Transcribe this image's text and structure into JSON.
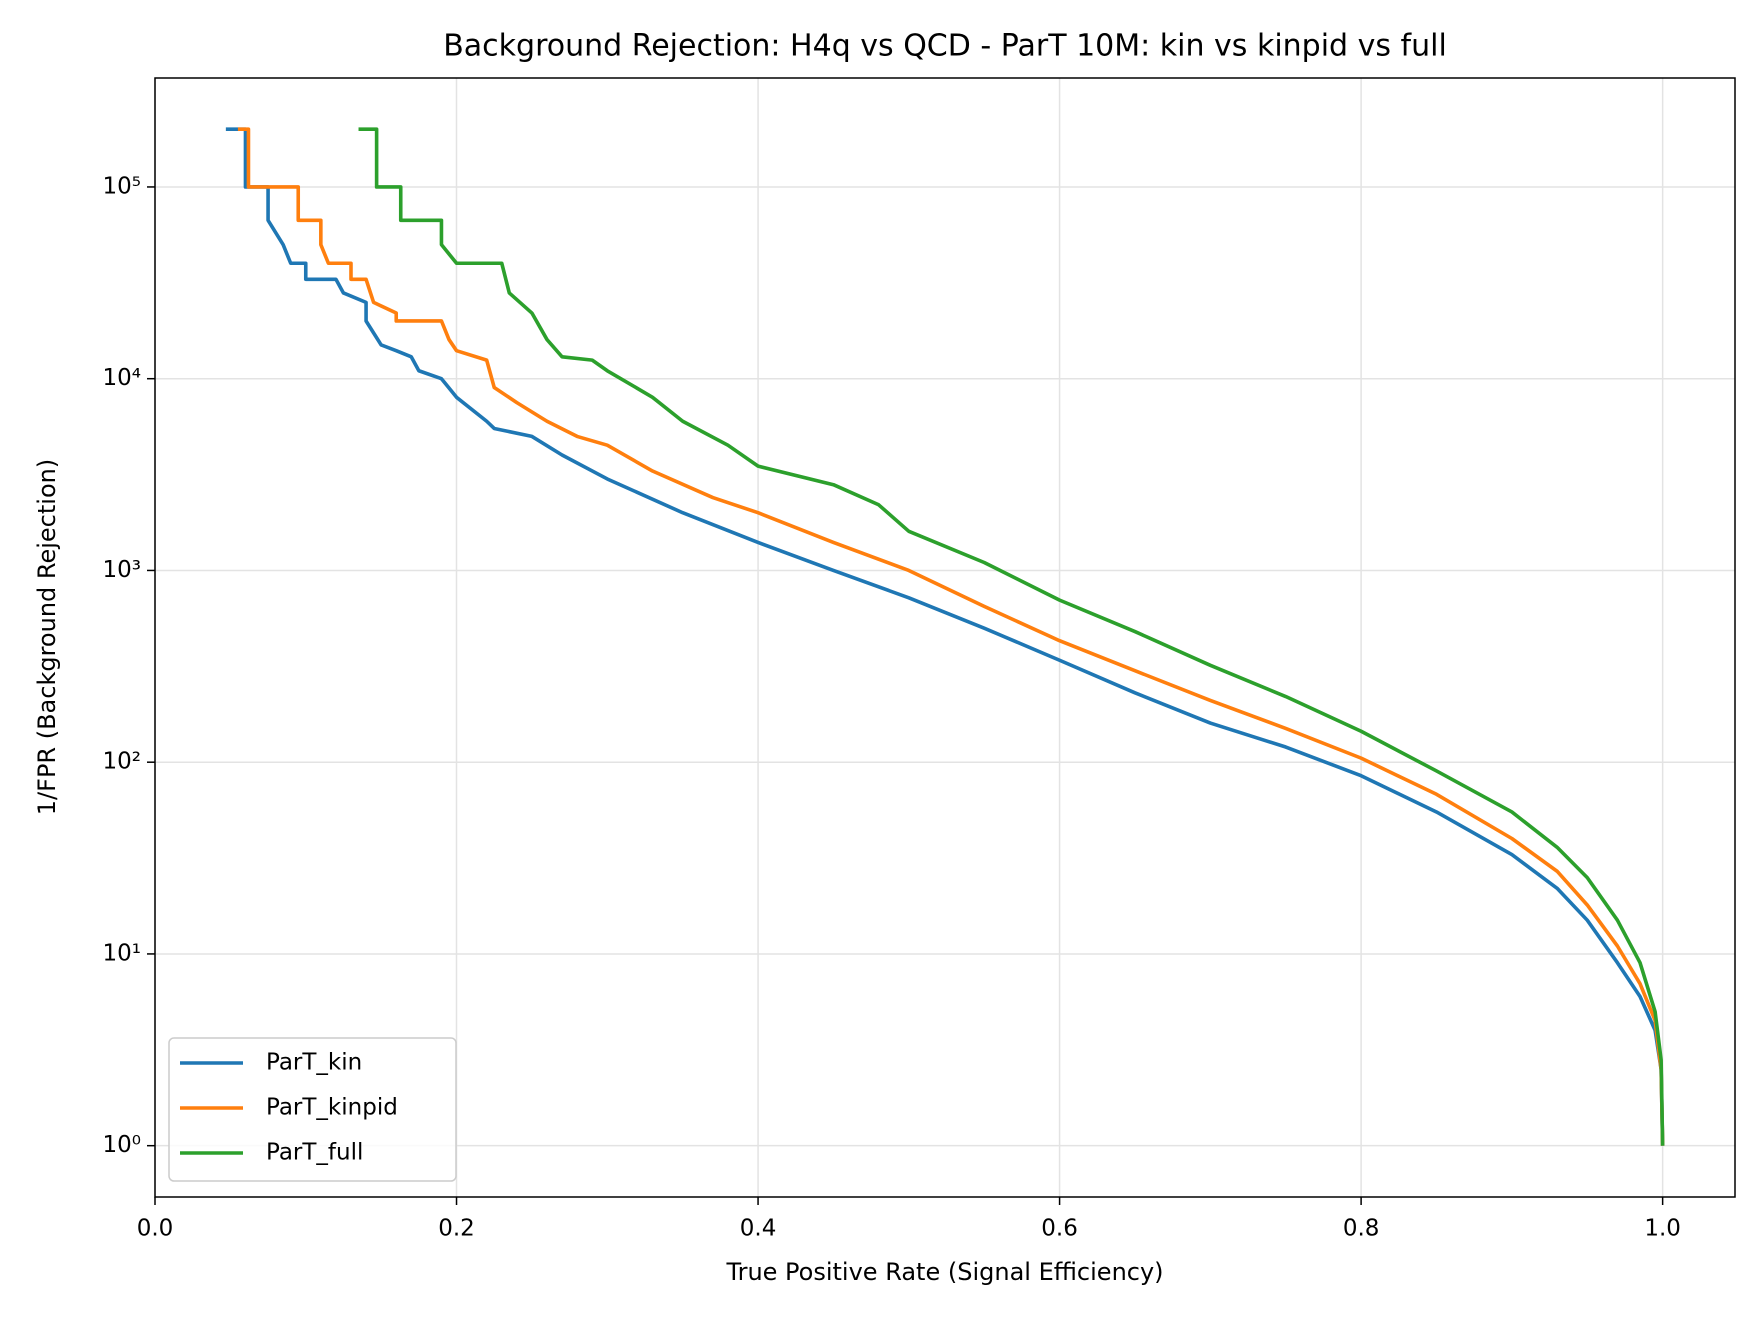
{
  "chart_data": {
    "type": "line",
    "title": "Background Rejection: H4q vs QCD - ParT 10M: kin vs kinpid vs full",
    "x_label": "True Positive Rate (Signal Efficiency)",
    "y_label": "1/FPR (Background Rejection)",
    "xlim": [
      0,
      1.048
    ],
    "ylim": [
      0.54,
      370000
    ],
    "log_y": true,
    "grid": true,
    "legend": "lower left",
    "xticks": [
      {
        "value": 0,
        "label": "0.0"
      },
      0.2,
      0.4,
      0.6,
      0.8,
      {
        "value": 1,
        "label": "1.0"
      }
    ],
    "yticks": [
      {
        "value": 1,
        "label": "10⁰"
      },
      {
        "value": 10,
        "label": "10¹"
      },
      {
        "value": 100,
        "label": "10²"
      },
      {
        "value": 1000,
        "label": "10³"
      },
      {
        "value": 10000,
        "label": "10⁴"
      },
      {
        "value": 100000,
        "label": "10⁵"
      }
    ],
    "series": [
      {
        "name": "ParT_kin",
        "color": "#1f77b4",
        "x": [
          0.047,
          0.06,
          0.06,
          0.075,
          0.075,
          0.085,
          0.09,
          0.1,
          0.1,
          0.12,
          0.125,
          0.14,
          0.14,
          0.15,
          0.16,
          0.17,
          0.175,
          0.19,
          0.2,
          0.22,
          0.225,
          0.25,
          0.27,
          0.3,
          0.35,
          0.4,
          0.45,
          0.5,
          0.55,
          0.6,
          0.65,
          0.7,
          0.75,
          0.8,
          0.85,
          0.9,
          0.93,
          0.95,
          0.97,
          0.985,
          0.995,
          0.999,
          1.0
        ],
        "values": [
          200000,
          200000,
          100000,
          100000,
          67000,
          50000,
          40000,
          40000,
          33000,
          33000,
          28000,
          25000,
          20000,
          15000,
          14000,
          13000,
          11000,
          10000,
          8000,
          6000,
          5500,
          5000,
          4000,
          3000,
          2000,
          1400,
          1000,
          720,
          500,
          340,
          230,
          160,
          120,
          85,
          55,
          33,
          22,
          15,
          9,
          6,
          4,
          2.5,
          1
        ]
      },
      {
        "name": "ParT_kinpid",
        "color": "#ff7f0e",
        "x": [
          0.055,
          0.062,
          0.062,
          0.095,
          0.095,
          0.11,
          0.11,
          0.115,
          0.13,
          0.13,
          0.14,
          0.145,
          0.16,
          0.16,
          0.19,
          0.195,
          0.2,
          0.22,
          0.225,
          0.24,
          0.26,
          0.28,
          0.3,
          0.33,
          0.37,
          0.4,
          0.45,
          0.5,
          0.55,
          0.6,
          0.65,
          0.7,
          0.75,
          0.8,
          0.85,
          0.9,
          0.93,
          0.95,
          0.97,
          0.985,
          0.995,
          0.999,
          1.0
        ],
        "values": [
          200000,
          200000,
          100000,
          100000,
          67000,
          67000,
          50000,
          40000,
          40000,
          33000,
          33000,
          25000,
          22000,
          20000,
          20000,
          16000,
          14000,
          12500,
          9000,
          7500,
          6000,
          5000,
          4500,
          3300,
          2400,
          2000,
          1400,
          1000,
          650,
          430,
          300,
          210,
          150,
          105,
          68,
          40,
          27,
          18,
          11,
          7,
          4.5,
          2.5,
          1
        ]
      },
      {
        "name": "ParT_full",
        "color": "#2ca02c",
        "x": [
          0.135,
          0.147,
          0.147,
          0.163,
          0.163,
          0.19,
          0.19,
          0.2,
          0.23,
          0.235,
          0.25,
          0.26,
          0.27,
          0.29,
          0.3,
          0.33,
          0.35,
          0.38,
          0.4,
          0.45,
          0.48,
          0.5,
          0.55,
          0.6,
          0.65,
          0.7,
          0.75,
          0.8,
          0.85,
          0.9,
          0.93,
          0.95,
          0.97,
          0.985,
          0.995,
          0.999,
          1.0
        ],
        "values": [
          200000,
          200000,
          100000,
          100000,
          67000,
          67000,
          50000,
          40000,
          40000,
          28000,
          22000,
          16000,
          13000,
          12500,
          11000,
          8000,
          6000,
          4500,
          3500,
          2800,
          2200,
          1600,
          1100,
          700,
          480,
          320,
          220,
          145,
          90,
          55,
          36,
          25,
          15,
          9,
          5,
          2.8,
          1
        ]
      }
    ]
  }
}
